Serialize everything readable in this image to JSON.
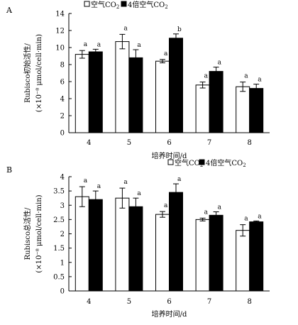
{
  "chart_data": [
    {
      "panel": "A",
      "type": "bar",
      "categories": [
        "4",
        "5",
        "6",
        "7",
        "8"
      ],
      "series": [
        {
          "name": "空气CO2",
          "fill": "#ffffff",
          "values": [
            9.2,
            10.7,
            8.4,
            5.6,
            5.4
          ],
          "errors": [
            0.45,
            0.85,
            0.2,
            0.35,
            0.55
          ],
          "labels": [
            "a",
            "a",
            "a",
            "a",
            "a"
          ]
        },
        {
          "name": "4倍空气CO2",
          "fill": "#000000",
          "values": [
            9.5,
            8.8,
            11.1,
            7.2,
            5.2
          ],
          "errors": [
            0.3,
            0.95,
            0.5,
            0.5,
            0.5
          ],
          "labels": [
            "a",
            "a",
            "b",
            "a",
            "a"
          ]
        }
      ],
      "xlabel": "培养时间/d",
      "ylabel": "Rubisco初始活性/",
      "ylabel2": "(×10⁻⁸ μmol/cell·min)",
      "ylim": [
        0,
        14
      ],
      "yticks": [
        0,
        2,
        4,
        6,
        8,
        10,
        12,
        14
      ],
      "legend": "top",
      "grid": false
    },
    {
      "panel": "B",
      "type": "bar",
      "categories": [
        "4",
        "5",
        "6",
        "7",
        "8"
      ],
      "series": [
        {
          "name": "空气CO2",
          "fill": "#ffffff",
          "values": [
            3.3,
            3.25,
            2.68,
            2.5,
            2.12
          ],
          "errors": [
            0.35,
            0.35,
            0.1,
            0.05,
            0.2
          ],
          "labels": [
            "a",
            "a",
            "a",
            "a",
            "a"
          ]
        },
        {
          "name": "4倍空气CO2",
          "fill": "#000000",
          "values": [
            3.2,
            2.95,
            3.45,
            2.65,
            2.42
          ],
          "errors": [
            0.3,
            0.3,
            0.3,
            0.12,
            0.03
          ],
          "labels": [
            "a",
            "a",
            "a",
            "a",
            "a"
          ]
        }
      ],
      "xlabel": "培养时间/d",
      "ylabel": "Rubisco总活性/",
      "ylabel2": "(×10⁻⁸ μmol/cell·min)",
      "ylim": [
        0,
        4
      ],
      "yticks": [
        0,
        0.5,
        1,
        1.5,
        2,
        2.5,
        3,
        3.5,
        4
      ],
      "legend": "top-right",
      "grid": false
    }
  ]
}
